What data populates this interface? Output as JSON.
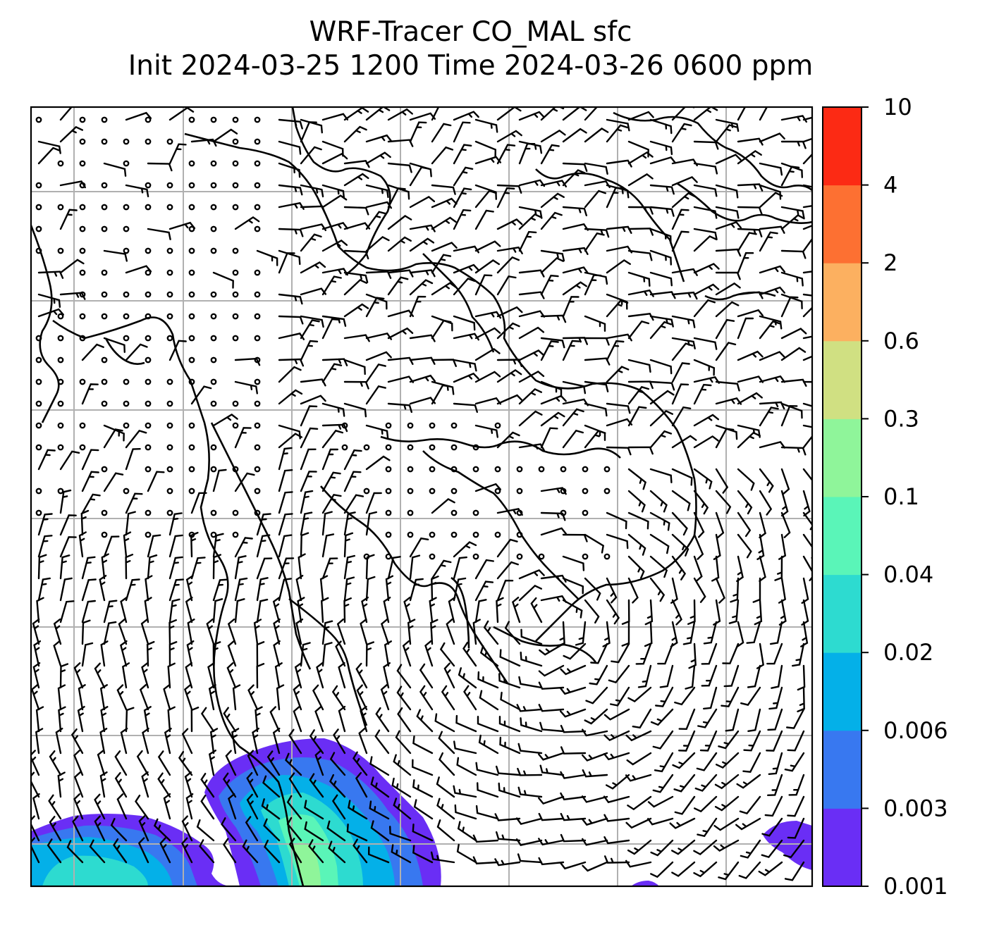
{
  "title": {
    "line1": "WRF-Tracer CO_MAL sfc",
    "line2": "Init 2024-03-25 1200 Time 2024-03-26 0600 ppm"
  },
  "map": {
    "grid": "on",
    "grid_color": "#b0b0b0",
    "coastline_color": "#000000",
    "barb_color": "#000000",
    "background": "#ffffff"
  },
  "colorbar": {
    "levels": [
      "0.001",
      "0.003",
      "0.006",
      "0.02",
      "0.04",
      "0.1",
      "0.3",
      "0.6",
      "2",
      "4",
      "10"
    ],
    "colors": [
      "#6a2ef5",
      "#3878f0",
      "#04b0e8",
      "#2ddbd0",
      "#5af5b8",
      "#8ff59a",
      "#d0e082",
      "#fcb060",
      "#fd7032",
      "#fc2a14"
    ]
  }
}
